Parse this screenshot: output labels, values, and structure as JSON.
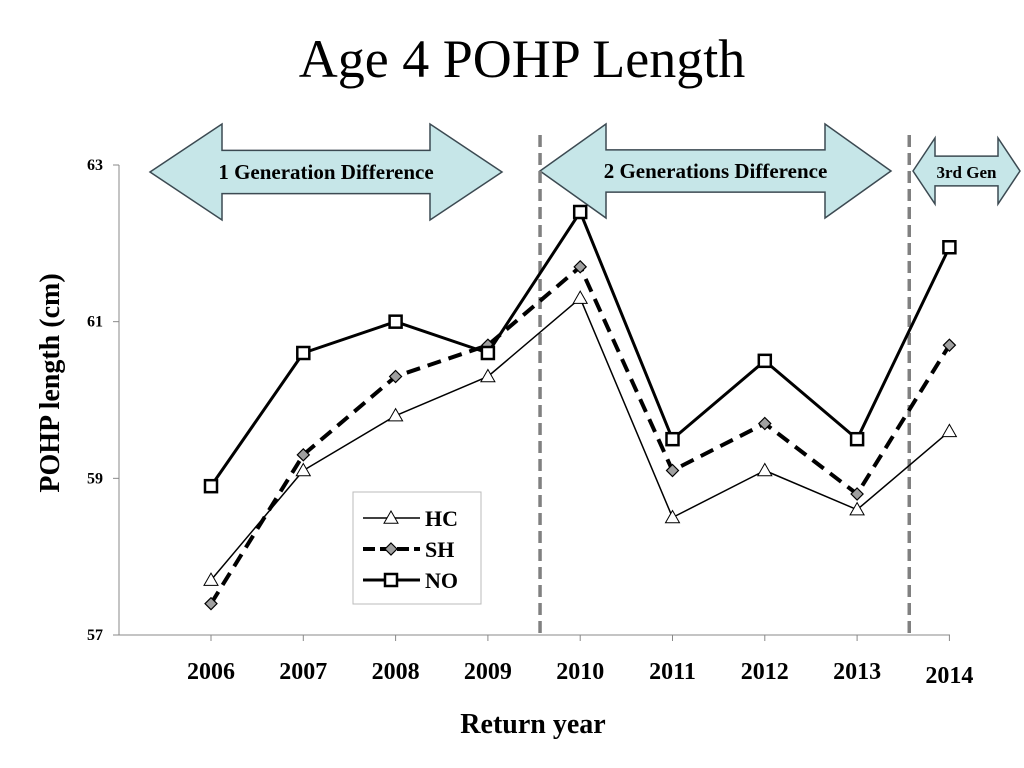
{
  "title": "Age 4 POHP Length",
  "chart_data": {
    "type": "line",
    "title": "Age 4 POHP Length",
    "xlabel": "Return year",
    "ylabel": "POHP length (cm)",
    "x": [
      "2006",
      "2007",
      "2008",
      "2009",
      "2010",
      "2011",
      "2012",
      "2013",
      "2014"
    ],
    "yticks": [
      "57",
      "59",
      "61",
      "63"
    ],
    "ylim": [
      57,
      63
    ],
    "grid": false,
    "legend": "center-left",
    "series": [
      {
        "name": "HC",
        "marker": "triangle",
        "line": "thin-solid",
        "color": "#000000",
        "values": [
          57.7,
          59.1,
          59.8,
          60.3,
          61.3,
          58.5,
          59.1,
          58.6,
          59.6
        ]
      },
      {
        "name": "SH",
        "marker": "diamond",
        "line": "thick-dashed",
        "color": "#000000",
        "values": [
          57.4,
          59.3,
          60.3,
          60.7,
          61.7,
          59.1,
          59.7,
          58.8,
          60.7
        ]
      },
      {
        "name": "NO",
        "marker": "square",
        "line": "thick-solid",
        "color": "#000000",
        "values": [
          58.9,
          60.6,
          61.0,
          60.6,
          62.4,
          59.5,
          60.5,
          59.5,
          61.95
        ]
      }
    ],
    "annotations": [
      {
        "label": "1 Generation Difference",
        "from": "2006",
        "to": "2009"
      },
      {
        "label": "2 Generations Difference",
        "from": "2010",
        "to": "2013"
      },
      {
        "label": "3rd Gen",
        "from": "2014",
        "to": "2014"
      }
    ],
    "dividers": [
      "2009-2010",
      "2013-2014"
    ],
    "colors": {
      "arrow_fill": "#c6e6e8",
      "divider": "#808080",
      "marker_diamond": "#a0a0a0"
    }
  }
}
